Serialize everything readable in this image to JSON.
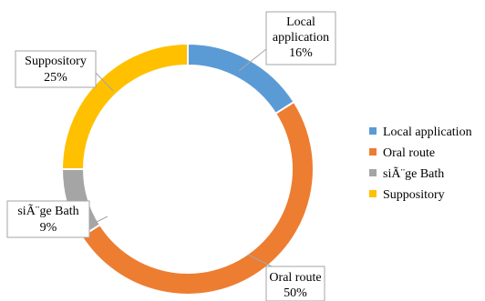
{
  "chart_data": {
    "type": "pie",
    "donut": true,
    "legend_position": "right",
    "categories": [
      "Local application",
      "Oral route",
      "siÃ¨ge Bath",
      "Suppository"
    ],
    "values": [
      16,
      50,
      9,
      25
    ],
    "value_labels": [
      "16%",
      "50%",
      "9%",
      "25%"
    ],
    "colors": [
      "#5B9BD5",
      "#ED7D31",
      "#A5A5A5",
      "#FFC000"
    ],
    "data_labels": [
      [
        "Local",
        "application",
        "16%"
      ],
      [
        "Oral route",
        "50%"
      ],
      [
        "siÃ¨ge Bath",
        "9%"
      ],
      [
        "Suppository",
        "25%"
      ]
    ]
  }
}
